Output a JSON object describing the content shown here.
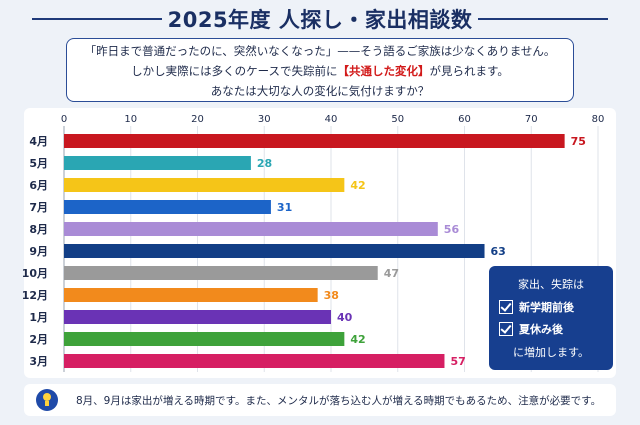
{
  "title": "2025年度 人探し・家出相談数",
  "intro": {
    "line1": "「昨日まで普通だったのに、突然いなくなった」——そう語るご家族は少なくありません。",
    "line2_before": "しかし実際には多くのケースで失踪前に",
    "line2_highlight": "【共通した変化】",
    "line2_after": "が見られます。",
    "line3": "あなたは大切な人の変化に気付けますか？"
  },
  "chart_data": {
    "type": "bar",
    "orientation": "horizontal",
    "categories": [
      "4月",
      "5月",
      "6月",
      "7月",
      "8月",
      "9月",
      "10月",
      "12月",
      "1月",
      "2月",
      "3月"
    ],
    "values": [
      75,
      28,
      42,
      31,
      56,
      63,
      47,
      38,
      40,
      42,
      57
    ],
    "colors": [
      "#c8171f",
      "#2aa6b3",
      "#f5c518",
      "#1c64c8",
      "#a98bd6",
      "#123e86",
      "#9a9a9a",
      "#f28a1c",
      "#6a33b5",
      "#3ea23a",
      "#d61f63"
    ],
    "xlim": [
      0,
      80
    ],
    "xticks": [
      0,
      10,
      20,
      30,
      40,
      50,
      60,
      70,
      80
    ],
    "grid": true
  },
  "legend": {
    "title": "家出、失踪は",
    "items": [
      "新学期前後",
      "夏休み後"
    ],
    "footer": "に増加します。"
  },
  "note": {
    "icon": "lightbulb-icon",
    "text": "8月、9月は家出が増える時期です。また、メンタルが落ち込む人が増える時期でもあるため、注意が必要です。"
  }
}
